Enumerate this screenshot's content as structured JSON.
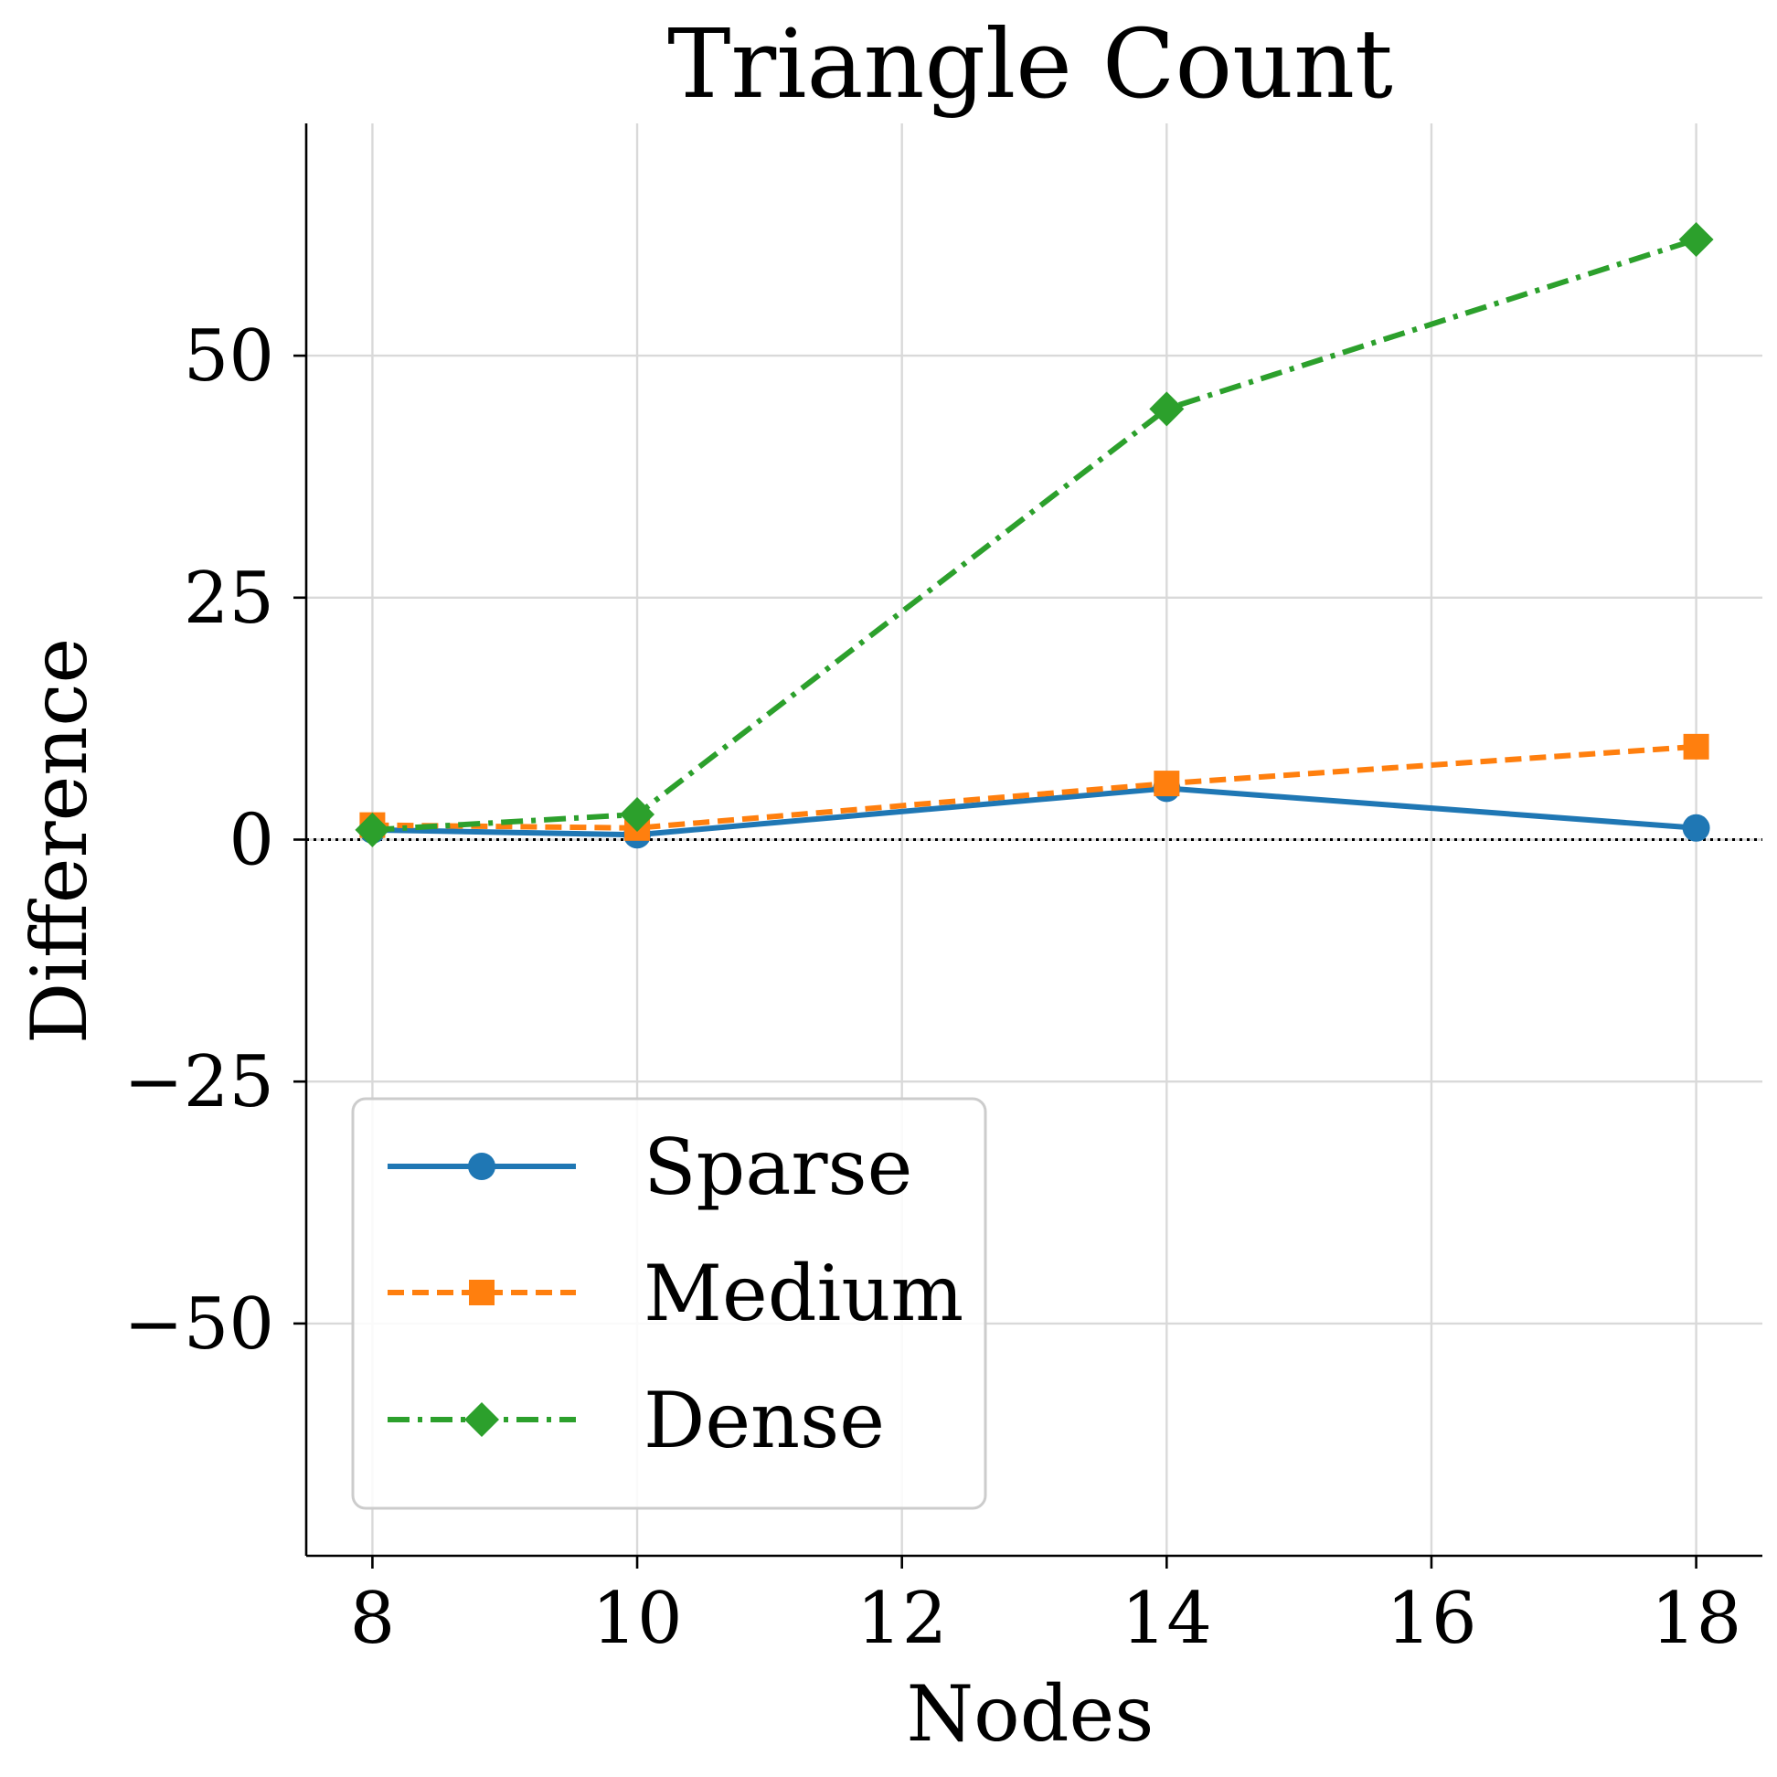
{
  "chart_data": {
    "type": "line",
    "title": "Triangle Count",
    "xlabel": "Nodes",
    "ylabel": "Difference",
    "x": [
      8,
      10,
      14,
      18
    ],
    "xlim": [
      7.5,
      18.5
    ],
    "ylim": [
      -74,
      74
    ],
    "xticks": [
      8,
      10,
      12,
      14,
      16,
      18
    ],
    "yticks": [
      -50,
      -25,
      0,
      25,
      50
    ],
    "ytick_labels": [
      "−50",
      "−25",
      "0",
      "25",
      "50"
    ],
    "grid": true,
    "reference_line": {
      "y": 0,
      "style": "dotted",
      "color": "#000000"
    },
    "legend_position": "lower-left",
    "series": [
      {
        "name": "Sparse",
        "values": [
          1.0,
          0.5,
          5.3,
          1.2
        ],
        "color": "#1f77b4",
        "line_style": "solid",
        "marker": "circle"
      },
      {
        "name": "Medium",
        "values": [
          1.5,
          1.2,
          5.8,
          9.6
        ],
        "color": "#ff7f0e",
        "line_style": "dashed",
        "marker": "square"
      },
      {
        "name": "Dense",
        "values": [
          1.0,
          2.6,
          44.5,
          62.0
        ],
        "color": "#2ca02c",
        "line_style": "dashdot",
        "marker": "diamond"
      }
    ]
  }
}
